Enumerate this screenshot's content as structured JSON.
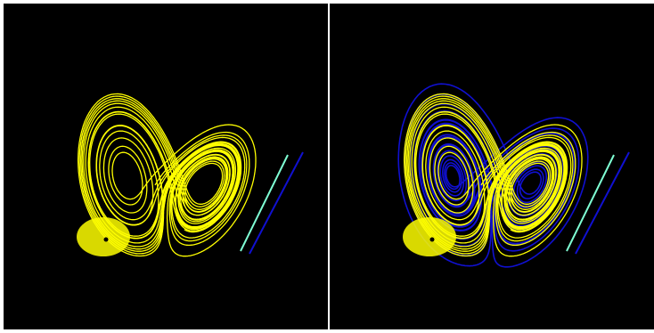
{
  "figure": {
    "background_color": "#000000",
    "frame_color": "#ffffff",
    "panels": [
      {
        "id": "left",
        "subject": "lorenz-attractor-trajectory",
        "trajectory_colors": [
          "#ffff00",
          "#1010d0"
        ],
        "marker_color": "#7fffd4",
        "marker_shadow_color": "#1010d0"
      },
      {
        "id": "right",
        "subject": "lorenz-attractor-trajectory",
        "trajectory_colors": [
          "#ffff00",
          "#1010d0"
        ],
        "marker_color": "#7fffd4",
        "marker_shadow_color": "#1010d0"
      }
    ]
  }
}
